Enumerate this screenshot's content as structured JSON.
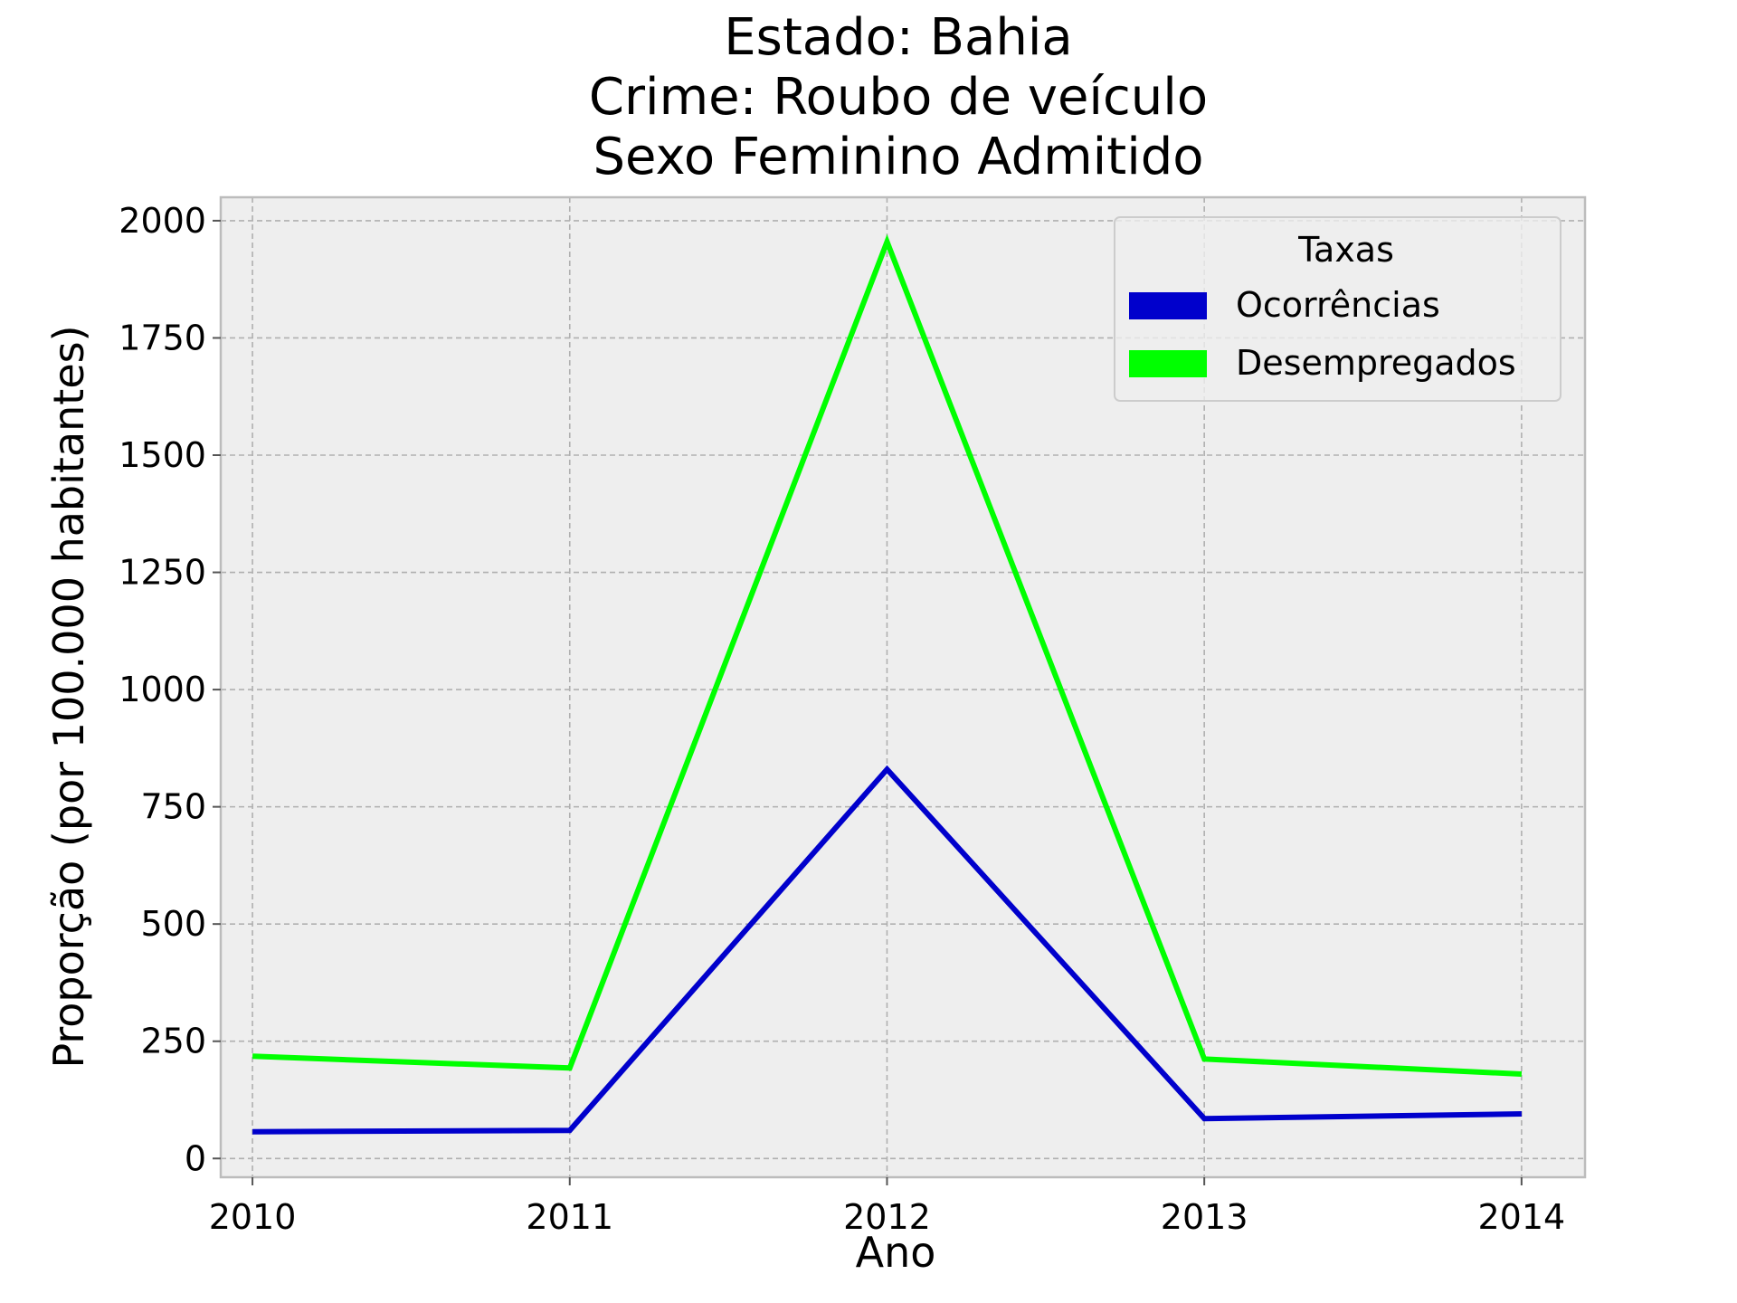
{
  "chart_data": {
    "type": "line",
    "title_lines": [
      "Estado: Bahia",
      "Crime: Roubo de veículo",
      "Sexo  Feminino   Admitido"
    ],
    "xlabel": "Ano",
    "ylabel": "Proporção (por 100.000 habitantes)",
    "x": [
      2010,
      2011,
      2012,
      2013,
      2014
    ],
    "x_tick_labels": [
      "2010",
      "2011",
      "2012",
      "2013",
      "2014"
    ],
    "yticks": [
      0,
      250,
      500,
      750,
      1000,
      1250,
      1500,
      1750,
      2000
    ],
    "y_tick_labels": [
      "0",
      "250",
      "500",
      "750",
      "1000",
      "1250",
      "1500",
      "1750",
      "2000"
    ],
    "xlim": [
      2009.9,
      2014.2
    ],
    "ylim": [
      -40,
      2050
    ],
    "grid": true,
    "legend": {
      "title": "Taxas",
      "placement": "top-right"
    },
    "series": [
      {
        "name": "Ocorrências",
        "color": "#0000cc",
        "values": [
          57,
          60,
          830,
          85,
          95
        ]
      },
      {
        "name": "Desempregados",
        "color": "#00ff00",
        "values": [
          218,
          193,
          1955,
          212,
          180
        ]
      }
    ],
    "colors": {
      "plot_background": "#eeeeee",
      "axes_edge": "#bcbcbc"
    }
  }
}
